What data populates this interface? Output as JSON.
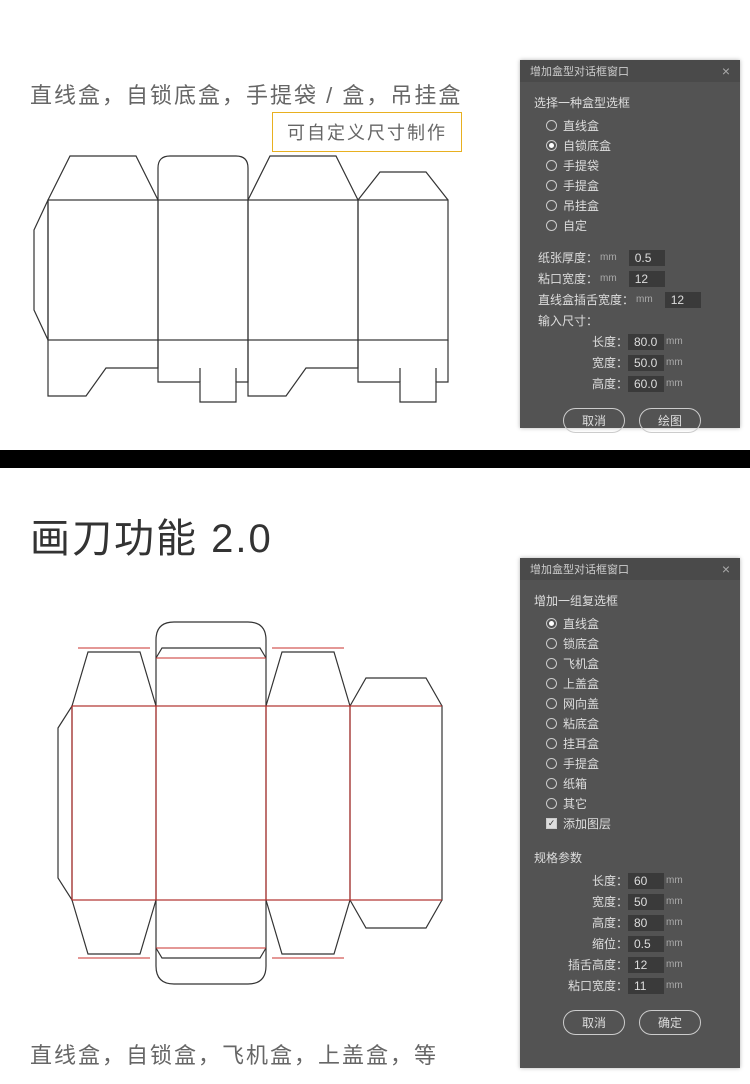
{
  "section1": {
    "heading": "直线盒，自锁底盒，手提袋 / 盒，吊挂盒",
    "callout": "可自定义尺寸制作",
    "dialog": {
      "title": "增加盒型对话框窗口",
      "group_label": "选择一种盒型选框",
      "options": [
        {
          "label": "直线盒",
          "selected": false
        },
        {
          "label": "自锁底盒",
          "selected": true
        },
        {
          "label": "手提袋",
          "selected": false
        },
        {
          "label": "手提盒",
          "selected": false
        },
        {
          "label": "吊挂盒",
          "selected": false
        },
        {
          "label": "自定",
          "selected": false
        }
      ],
      "params_top": [
        {
          "label": "纸张厚度：",
          "unit": "mm",
          "value": "0.5"
        },
        {
          "label": "粘口宽度：",
          "unit": "mm",
          "value": "12"
        },
        {
          "label": "直线盒插舌宽度：",
          "unit": "mm",
          "value": "12"
        }
      ],
      "size_label": "输入尺寸：",
      "size_params": [
        {
          "label": "长度：",
          "value": "80.0",
          "unit": "mm"
        },
        {
          "label": "宽度：",
          "value": "50.0",
          "unit": "mm"
        },
        {
          "label": "高度：",
          "value": "60.0",
          "unit": "mm"
        }
      ],
      "cancel": "取消",
      "confirm": "绘图"
    }
  },
  "section2": {
    "heading": "画刀功能 2.0",
    "caption": "直线盒，自锁盒，飞机盒，上盖盒，等",
    "dialog": {
      "title": "增加盒型对话框窗口",
      "group_label": "增加一组复选框",
      "options": [
        {
          "label": "直线盒",
          "selected": true
        },
        {
          "label": "锁底盒",
          "selected": false
        },
        {
          "label": "飞机盒",
          "selected": false
        },
        {
          "label": "上盖盒",
          "selected": false
        },
        {
          "label": "网向盖",
          "selected": false
        },
        {
          "label": "粘底盒",
          "selected": false
        },
        {
          "label": "挂耳盒",
          "selected": false
        },
        {
          "label": "手提盒",
          "selected": false
        },
        {
          "label": "纸箱",
          "selected": false
        },
        {
          "label": "其它",
          "selected": false
        }
      ],
      "checkbox": {
        "label": "添加图层",
        "checked": true
      },
      "spec_label": "规格参数",
      "size_params": [
        {
          "label": "长度：",
          "value": "60",
          "unit": "mm"
        },
        {
          "label": "宽度：",
          "value": "50",
          "unit": "mm"
        },
        {
          "label": "高度：",
          "value": "80",
          "unit": "mm"
        },
        {
          "label": "缩位：",
          "value": "0.5",
          "unit": "mm"
        },
        {
          "label": "插舌高度：",
          "value": "12",
          "unit": "mm"
        },
        {
          "label": "粘口宽度：",
          "value": "11",
          "unit": "mm"
        }
      ],
      "cancel": "取消",
      "confirm": "确定"
    }
  },
  "colors": {
    "panel_bg": "#535353",
    "callout_border": "#e8b020",
    "fold_line": "#c9302c"
  }
}
